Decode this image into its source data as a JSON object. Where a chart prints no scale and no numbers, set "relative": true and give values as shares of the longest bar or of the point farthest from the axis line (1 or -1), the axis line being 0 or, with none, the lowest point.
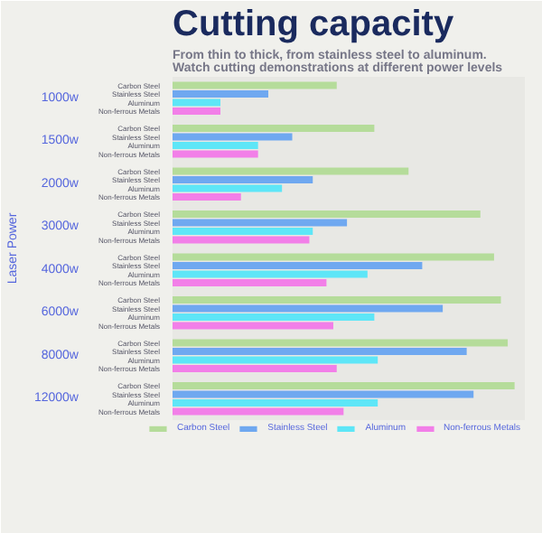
{
  "chart_data": {
    "type": "bar",
    "orientation": "horizontal",
    "relative": true,
    "title": "Cutting capacity",
    "subtitle": "From thin to thick, from stainless steel to aluminum.\nWatch cutting demonstrations at different power levels",
    "ylabel": "Laser Power",
    "categories": [
      "1000w",
      "1500w",
      "2000w",
      "3000w",
      "4000w",
      "6000w",
      "8000w",
      "12000w"
    ],
    "series": [
      {
        "name": "Carbon Steel",
        "color": "#b5dc9a",
        "values": [
          0.48,
          0.59,
          0.69,
          0.9,
          0.94,
          0.96,
          0.98,
          1.0
        ]
      },
      {
        "name": "Stainless Steel",
        "color": "#6fa8f0",
        "values": [
          0.28,
          0.35,
          0.41,
          0.51,
          0.73,
          0.79,
          0.86,
          0.88
        ]
      },
      {
        "name": "Aluminum",
        "color": "#5ee6f7",
        "values": [
          0.14,
          0.25,
          0.32,
          0.41,
          0.57,
          0.59,
          0.6,
          0.6
        ]
      },
      {
        "name": "Non-ferrous Metals",
        "color": "#f27fe8",
        "values": [
          0.14,
          0.25,
          0.2,
          0.4,
          0.45,
          0.47,
          0.48,
          0.5
        ]
      }
    ],
    "legend": "bottom"
  }
}
